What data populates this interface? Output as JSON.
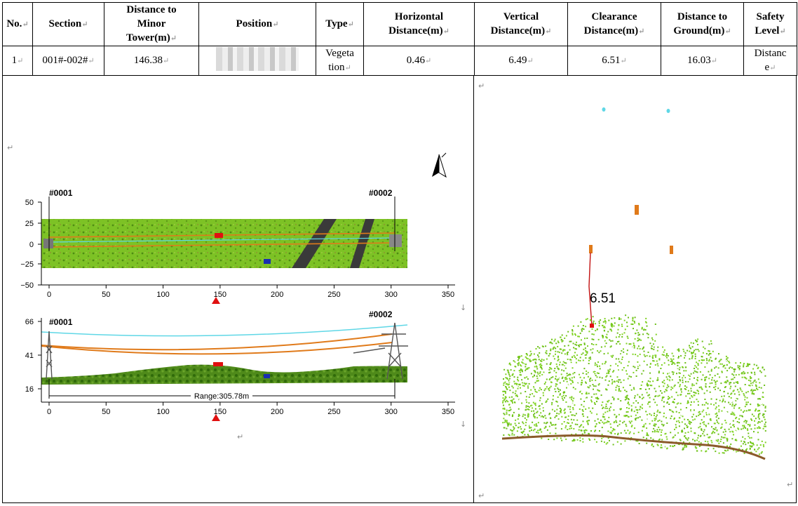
{
  "table": {
    "headers": {
      "no": "No.",
      "section": "Section",
      "dist_minor_l1": "Distance to",
      "dist_minor_l2": "Minor",
      "dist_minor_l3": "Tower(m)",
      "position": "Position",
      "type": "Type",
      "horiz_l1": "Horizontal",
      "horiz_l2": "Distance(m)",
      "vert_l1": "Vertical",
      "vert_l2": "Distance(m)",
      "clear_l1": "Clearance",
      "clear_l2": "Distance(m)",
      "ground_l1": "Distance to",
      "ground_l2": "Ground(m)",
      "safety_l1": "Safety",
      "safety_l2": "Level"
    },
    "row": {
      "no": "1",
      "section": "001#-002#",
      "dist_minor": "146.38",
      "type_l1": "Vegeta",
      "type_l2": "tion",
      "horizontal": "0.46",
      "vertical": "6.49",
      "clearance": "6.51",
      "ground": "16.03",
      "safety_l1": "Distanc",
      "safety_l2": "e"
    }
  },
  "plan_view": {
    "tower_a": "#0001",
    "tower_b": "#0002",
    "y_ticks": [
      "50",
      "25",
      "0",
      "−25",
      "−50"
    ],
    "x_ticks": [
      "0",
      "50",
      "100",
      "150",
      "200",
      "250",
      "300",
      "350"
    ],
    "marker_x": 146.38
  },
  "profile_view": {
    "tower_a": "#0001",
    "tower_b": "#0002",
    "y_ticks": [
      "66",
      "41",
      "16"
    ],
    "x_ticks": [
      "0",
      "50",
      "100",
      "150",
      "200",
      "250",
      "300",
      "350"
    ],
    "range_label": "Range:305.78m",
    "marker_x": 146.38
  },
  "cross_section": {
    "clearance_label": "6.51"
  },
  "colors": {
    "vegetation": "#6fbf1a",
    "conductor": "#e07a1a",
    "ground_wire": "#5fd7e6",
    "danger": "#e01010",
    "road": "#3a3a3a"
  }
}
